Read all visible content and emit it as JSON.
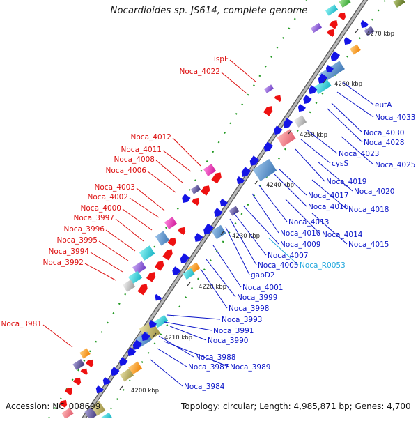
{
  "title": "Nocardioides sp. JS614, complete genome",
  "footer": {
    "accession": "Accession: NC_008699",
    "topology": "Topology: circular; Length: 4,985,871 bp; Genes: 4,700"
  },
  "colors": {
    "left_label": "#dd1111",
    "right_label": "#0a14c8",
    "rna_label": "#21a7dd",
    "backbone": "#9a9a9a",
    "tick": "#229922",
    "forward_gene": "#ee1111",
    "reverse_gene": "#1414e6"
  },
  "ticks": [
    "4200 kbp",
    "4210 kbp",
    "4220 kbp",
    "4230 kbp",
    "4240 kbp",
    "4250 kbp",
    "4260 kbp",
    "4270 kbp"
  ],
  "left_labels": [
    "ispF",
    "Noca_4022",
    "Noca_4012",
    "Noca_4011",
    "Noca_4008",
    "Noca_4006",
    "Noca_4003",
    "Noca_4002",
    "Noca_4000",
    "Noca_3997",
    "Noca_3996",
    "Noca_3995",
    "Noca_3994",
    "Noca_3992",
    "Noca_3981"
  ],
  "right_labels": [
    "eutA",
    "Noca_4033",
    "Noca_4030",
    "Noca_4028",
    "Noca_4023",
    "cysS",
    "Noca_4025",
    "Noca_4019",
    "Noca_4020",
    "Noca_4017",
    "Noca_4016",
    "Noca_4018",
    "Noca_4013",
    "Noca_4010",
    "Noca_4014",
    "Noca_4009",
    "Noca_4015",
    "Noca_4007",
    "Noca_4005",
    "Noca_R0053",
    "gabD2",
    "Noca_4001",
    "Noca_3999",
    "Noca_3998",
    "Noca_3993",
    "Noca_3991",
    "Noca_3990",
    "Noca_3988",
    "Noca_3989",
    "Noca_3987",
    "Noca_3984"
  ]
}
